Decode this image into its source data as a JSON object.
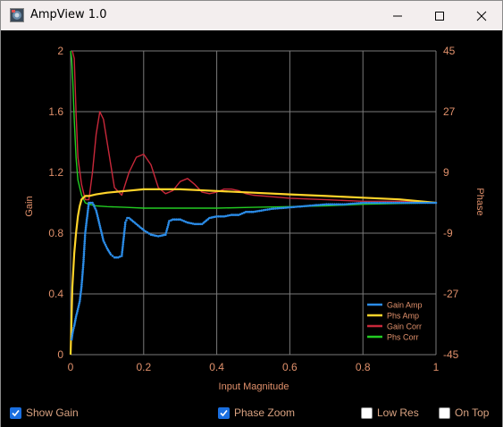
{
  "window": {
    "title": "AmpView 1.0"
  },
  "controls": {
    "show_gain": {
      "label": "Show Gain",
      "checked": true
    },
    "phase_zoom": {
      "label": "Phase Zoom",
      "checked": true
    },
    "low_res": {
      "label": "Low Res",
      "checked": false
    },
    "on_top": {
      "label": "On Top",
      "checked": false
    }
  },
  "colors": {
    "axis_text": "#e0906b",
    "grid": "#7a7a7a",
    "checkbox": "#1a6fe0"
  },
  "chart_data": {
    "type": "line",
    "xlabel": "Input Magnitude",
    "ylabel": "Gain",
    "y2label": "Phase",
    "xlim": [
      0,
      1
    ],
    "ylim": [
      0,
      2
    ],
    "y2lim": [
      -45,
      45
    ],
    "x_ticks": [
      "0",
      "0.2",
      "0.4",
      "0.6",
      "0.8",
      "1"
    ],
    "y_ticks": [
      "0",
      "0.4",
      "0.8",
      "1.2",
      "1.6",
      "2"
    ],
    "y2_ticks": [
      "-45",
      "-27",
      "-9",
      "9",
      "27",
      "45"
    ],
    "grid": true,
    "legend_position": "bottom-right",
    "series": [
      {
        "name": "Gain Amp",
        "color": "#2b8ce8",
        "axis": "left",
        "style": "dots",
        "x": [
          0.003,
          0.006,
          0.01,
          0.015,
          0.02,
          0.025,
          0.03,
          0.035,
          0.04,
          0.045,
          0.05,
          0.06,
          0.07,
          0.08,
          0.09,
          0.1,
          0.11,
          0.12,
          0.13,
          0.14,
          0.15,
          0.155,
          0.16,
          0.18,
          0.2,
          0.22,
          0.24,
          0.26,
          0.27,
          0.28,
          0.3,
          0.32,
          0.34,
          0.36,
          0.38,
          0.4,
          0.42,
          0.44,
          0.46,
          0.48,
          0.5,
          0.55,
          0.6,
          0.65,
          0.7,
          0.75,
          0.8,
          0.85,
          0.9,
          0.95,
          1.0
        ],
        "y": [
          0.1,
          0.15,
          0.19,
          0.25,
          0.3,
          0.35,
          0.45,
          0.6,
          0.8,
          0.9,
          1.0,
          1.0,
          0.95,
          0.85,
          0.75,
          0.7,
          0.66,
          0.64,
          0.64,
          0.65,
          0.87,
          0.9,
          0.9,
          0.86,
          0.82,
          0.79,
          0.78,
          0.79,
          0.88,
          0.89,
          0.89,
          0.87,
          0.86,
          0.86,
          0.9,
          0.91,
          0.91,
          0.92,
          0.92,
          0.94,
          0.94,
          0.96,
          0.97,
          0.98,
          0.99,
          0.99,
          1.0,
          1.0,
          1.0,
          1.0,
          1.0
        ]
      },
      {
        "name": "Phs Amp",
        "color": "#ffd42a",
        "axis": "right",
        "style": "line",
        "x": [
          0.0,
          0.005,
          0.01,
          0.015,
          0.02,
          0.025,
          0.03,
          0.04,
          0.05,
          0.07,
          0.1,
          0.15,
          0.2,
          0.25,
          0.3,
          0.4,
          0.5,
          0.6,
          0.7,
          0.8,
          0.9,
          1.0
        ],
        "y": [
          -45,
          -25,
          -15,
          -9,
          -4,
          -1,
          1,
          2,
          2,
          2.5,
          3,
          3.5,
          4,
          4,
          4,
          3.5,
          3,
          2.5,
          2,
          1.5,
          1,
          0
        ]
      },
      {
        "name": "Gain Corr",
        "color": "#c8283a",
        "axis": "left",
        "style": "line",
        "x": [
          0.005,
          0.01,
          0.015,
          0.02,
          0.03,
          0.04,
          0.05,
          0.06,
          0.07,
          0.08,
          0.09,
          0.1,
          0.12,
          0.14,
          0.16,
          0.18,
          0.2,
          0.22,
          0.24,
          0.26,
          0.28,
          0.3,
          0.32,
          0.34,
          0.36,
          0.38,
          0.4,
          0.42,
          0.44,
          0.46,
          0.48,
          0.5,
          0.55,
          0.6,
          0.7,
          0.8,
          0.9,
          1.0
        ],
        "y": [
          2.0,
          1.95,
          1.6,
          1.3,
          1.12,
          1.02,
          1.02,
          1.2,
          1.45,
          1.6,
          1.55,
          1.4,
          1.1,
          1.05,
          1.2,
          1.3,
          1.32,
          1.25,
          1.1,
          1.06,
          1.08,
          1.14,
          1.16,
          1.12,
          1.07,
          1.06,
          1.07,
          1.09,
          1.09,
          1.08,
          1.06,
          1.05,
          1.04,
          1.03,
          1.02,
          1.01,
          1.01,
          1.0
        ]
      },
      {
        "name": "Phs Corr",
        "color": "#22cc22",
        "axis": "left",
        "style": "line",
        "x": [
          0.0,
          0.003,
          0.006,
          0.01,
          0.015,
          0.02,
          0.03,
          0.04,
          0.05,
          0.07,
          0.1,
          0.15,
          0.2,
          0.25,
          0.3,
          0.4,
          0.5,
          0.6,
          0.7,
          0.8,
          0.9,
          1.0
        ],
        "y": [
          2.0,
          1.95,
          1.8,
          1.55,
          1.3,
          1.15,
          1.05,
          1.0,
          0.99,
          0.98,
          0.975,
          0.97,
          0.965,
          0.965,
          0.965,
          0.965,
          0.97,
          0.975,
          0.98,
          0.99,
          0.995,
          1.0
        ]
      }
    ]
  }
}
